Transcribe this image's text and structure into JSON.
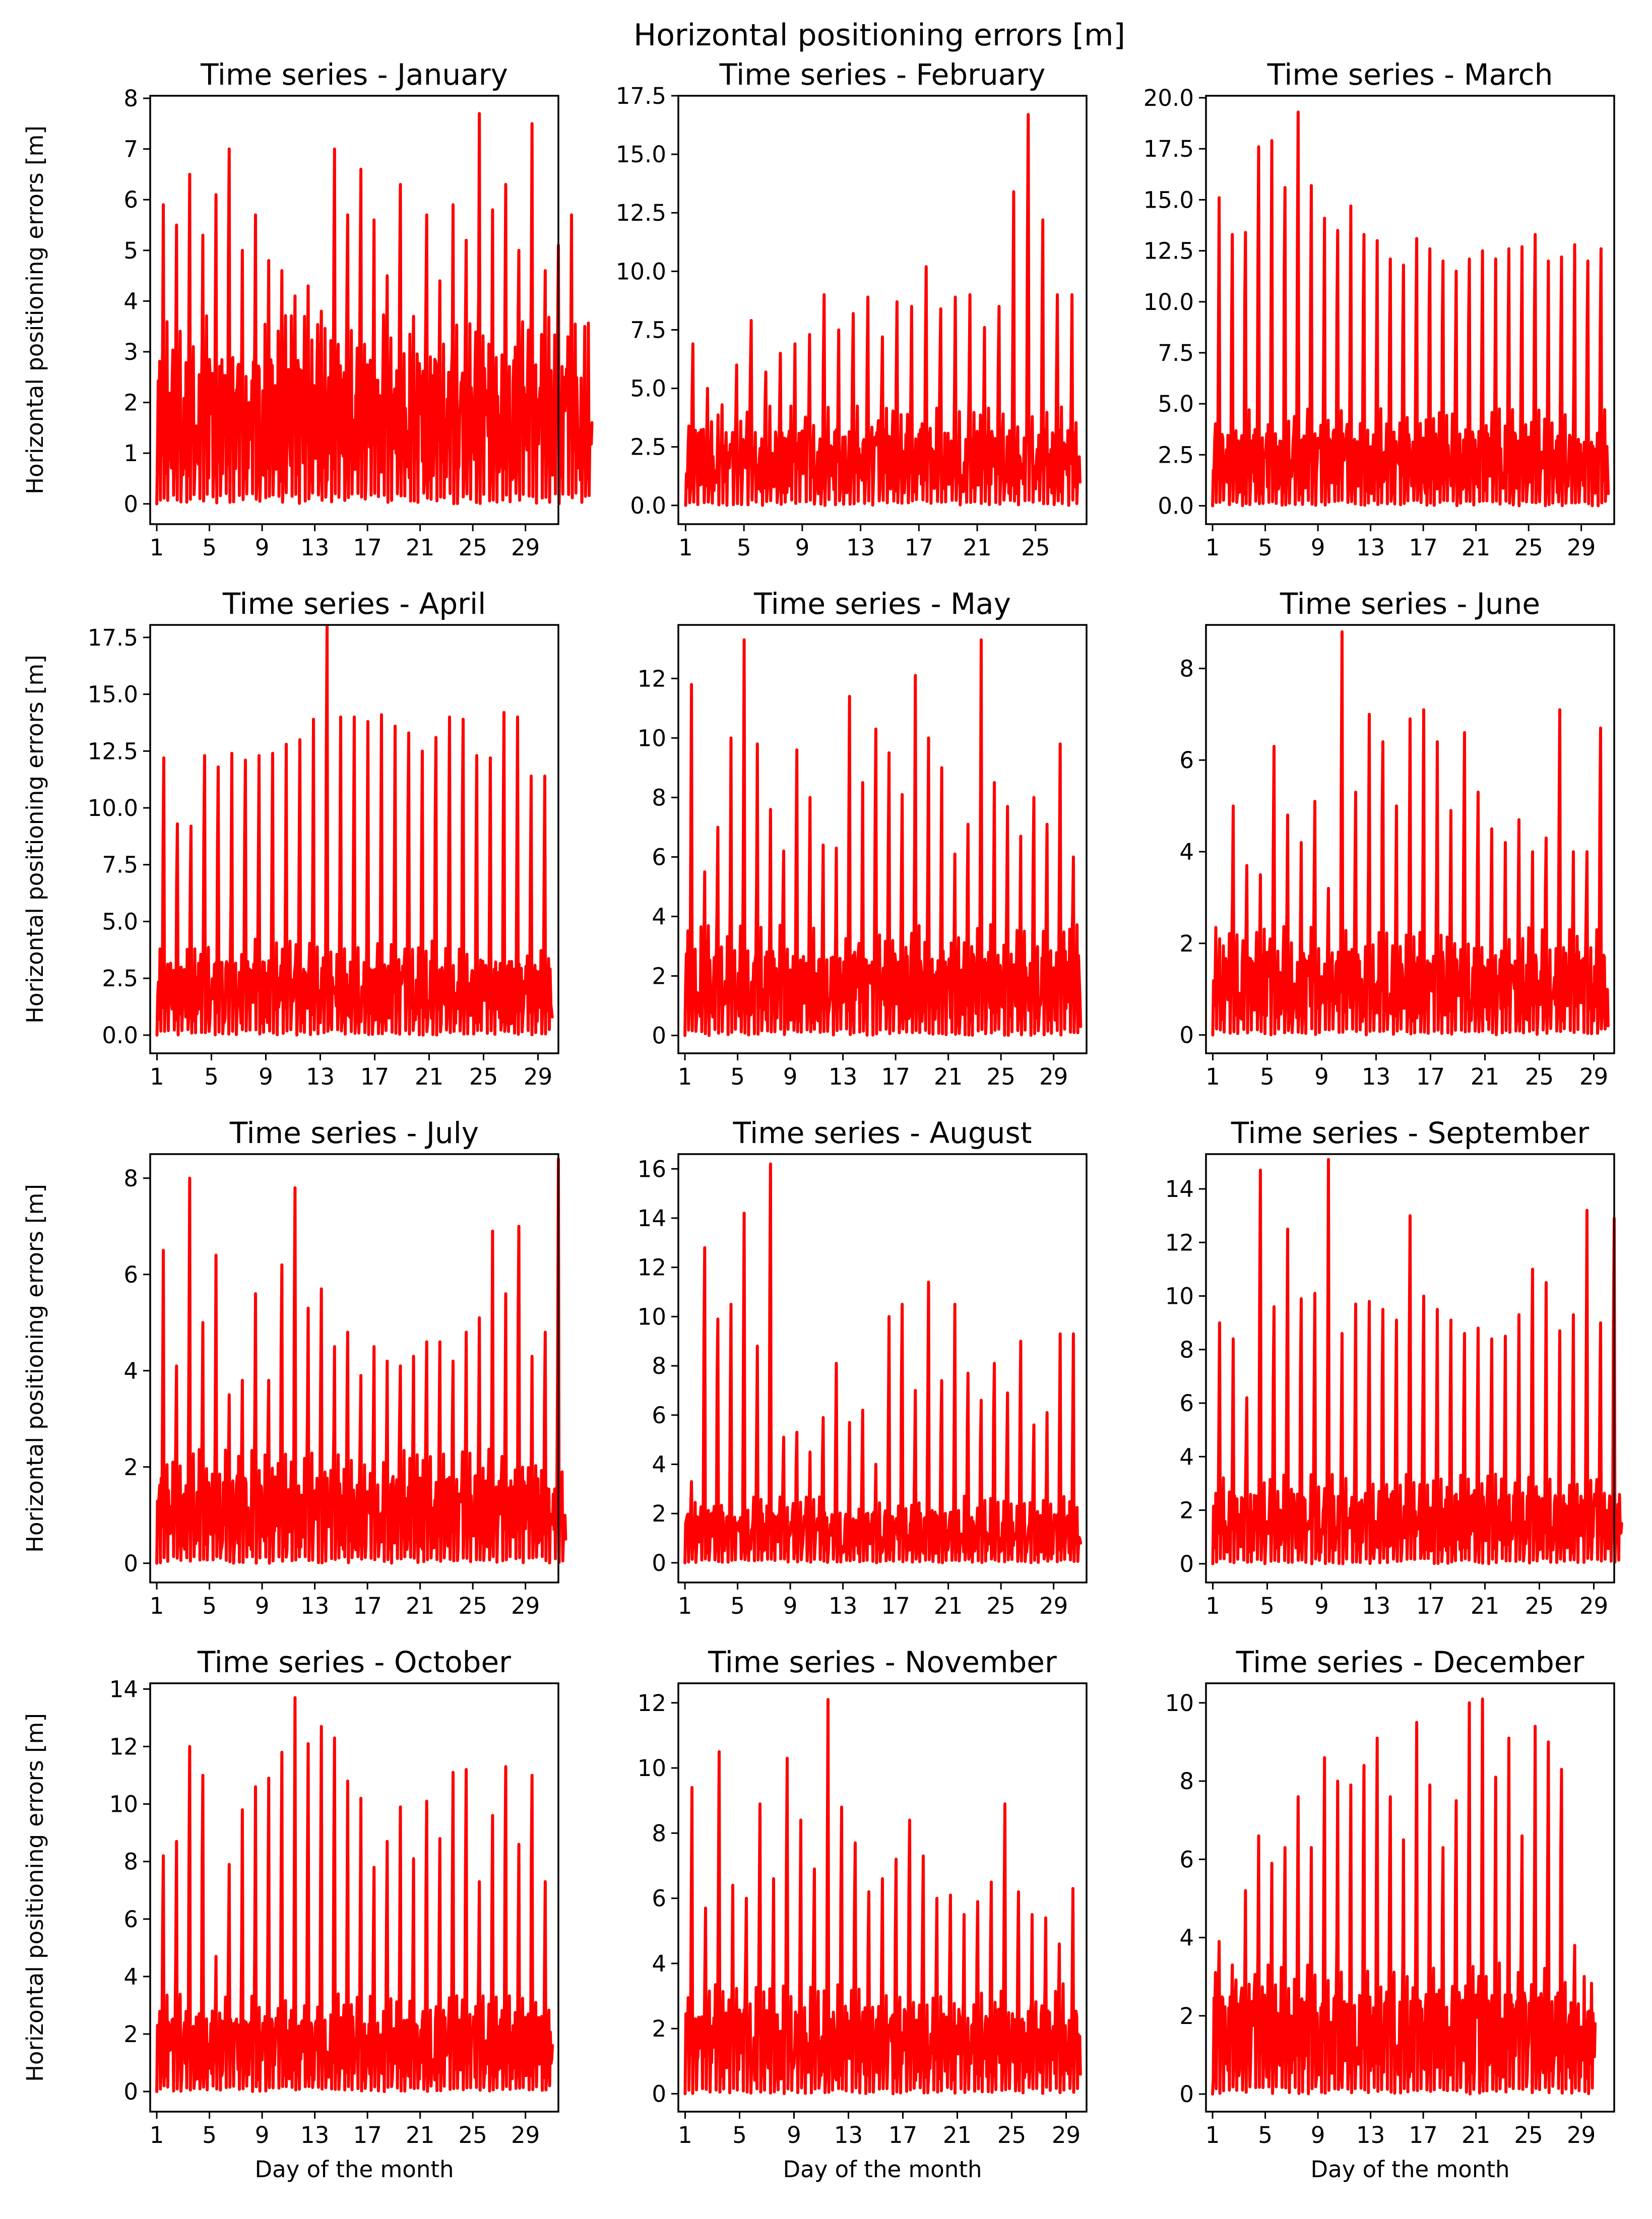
{
  "figure": {
    "suptitle": "Horizontal positioning errors [m]",
    "series_color": "#ff0000"
  },
  "chart_data": [
    {
      "type": "line",
      "title": "Time series - January",
      "xlabel": "",
      "ylabel": "Horizontal positioning errors [m]",
      "days": 31,
      "xticks": [
        1,
        5,
        9,
        13,
        17,
        21,
        25,
        29
      ],
      "ylim": [
        -0.4,
        8.05
      ],
      "yticks": [
        0,
        1,
        2,
        3,
        4,
        5,
        6,
        7,
        8
      ],
      "ytick_labels": [
        "0",
        "1",
        "2",
        "3",
        "4",
        "5",
        "6",
        "7",
        "8"
      ],
      "series": [
        {
          "name": "Horizontal positioning error",
          "peaks": [
            5.9,
            5.5,
            6.5,
            5.3,
            6.1,
            7.0,
            5.0,
            5.7,
            4.8,
            4.6,
            4.1,
            4.3,
            3.8,
            7.0,
            5.7,
            6.6,
            5.6,
            4.5,
            6.3,
            3.7,
            5.7,
            4.4,
            5.9,
            5.2,
            7.7,
            5.8,
            6.3,
            5.0,
            7.5,
            4.6,
            5.1,
            5.7,
            3.5
          ],
          "baseline": 2.2,
          "last_value": 1.6
        }
      ]
    },
    {
      "type": "line",
      "title": "Time series - February",
      "xlabel": "",
      "ylabel": "",
      "days": 28,
      "xticks": [
        1,
        5,
        9,
        13,
        17,
        21,
        25
      ],
      "ylim": [
        -0.8,
        17.5
      ],
      "yticks": [
        0,
        2.5,
        5,
        7.5,
        10,
        12.5,
        15,
        17.5
      ],
      "ytick_labels": [
        "0.0",
        "2.5",
        "5.0",
        "7.5",
        "10.0",
        "12.5",
        "15.0",
        "17.5"
      ],
      "series": [
        {
          "name": "Horizontal positioning error",
          "peaks": [
            6.9,
            5.0,
            4.3,
            6.0,
            7.9,
            5.7,
            6.5,
            6.9,
            7.3,
            9.0,
            7.5,
            8.2,
            8.9,
            7.2,
            8.7,
            8.5,
            10.2,
            8.4,
            8.9,
            9.0,
            7.6,
            8.5,
            13.4,
            16.7,
            12.2,
            9.0,
            9.0
          ],
          "baseline": 2.5,
          "last_value": 1.0
        }
      ]
    },
    {
      "type": "line",
      "title": "Time series - March",
      "xlabel": "",
      "ylabel": "",
      "days": 31,
      "xticks": [
        1,
        5,
        9,
        13,
        17,
        21,
        25,
        29
      ],
      "ylim": [
        -0.9,
        20.1
      ],
      "yticks": [
        0,
        2.5,
        5,
        7.5,
        10,
        12.5,
        15,
        17.5,
        20
      ],
      "ytick_labels": [
        "0.0",
        "2.5",
        "5.0",
        "7.5",
        "10.0",
        "12.5",
        "15.0",
        "17.5",
        "20.0"
      ],
      "series": [
        {
          "name": "Horizontal positioning error",
          "peaks": [
            15.1,
            13.3,
            13.4,
            17.6,
            17.9,
            15.6,
            19.3,
            15.7,
            14.1,
            13.5,
            14.7,
            13.3,
            13.0,
            12.1,
            11.8,
            13.1,
            12.6,
            12.0,
            11.5,
            12.1,
            12.5,
            12.1,
            12.6,
            12.7,
            13.3,
            12.0,
            12.2,
            12.8,
            12.0,
            12.6
          ],
          "baseline": 2.8,
          "last_value": 0.6
        }
      ]
    },
    {
      "type": "line",
      "title": "Time series - April",
      "xlabel": "",
      "ylabel": "Horizontal positioning errors [m]",
      "days": 30,
      "xticks": [
        1,
        5,
        9,
        13,
        17,
        21,
        25,
        29
      ],
      "ylim": [
        -0.8,
        18.05
      ],
      "yticks": [
        0,
        2.5,
        5,
        7.5,
        10,
        12.5,
        15,
        17.5
      ],
      "ytick_labels": [
        "0.0",
        "2.5",
        "5.0",
        "7.5",
        "10.0",
        "12.5",
        "15.0",
        "17.5"
      ],
      "series": [
        {
          "name": "Horizontal positioning error",
          "peaks": [
            12.2,
            9.3,
            9.2,
            12.3,
            11.8,
            12.4,
            12.1,
            12.3,
            12.4,
            12.8,
            13.0,
            13.9,
            18.0,
            14.0,
            14.0,
            13.8,
            14.1,
            13.6,
            13.3,
            12.5,
            13.1,
            14.0,
            13.9,
            12.3,
            12.2,
            14.2,
            14.0,
            11.4,
            11.4
          ],
          "baseline": 2.5,
          "last_value": 0.8
        }
      ]
    },
    {
      "type": "line",
      "title": "Time series - May",
      "xlabel": "",
      "ylabel": "",
      "days": 31,
      "xticks": [
        1,
        5,
        9,
        13,
        17,
        21,
        25,
        29
      ],
      "ylim": [
        -0.6,
        13.8
      ],
      "yticks": [
        0,
        2,
        4,
        6,
        8,
        10,
        12
      ],
      "ytick_labels": [
        "0",
        "2",
        "4",
        "6",
        "8",
        "10",
        "12"
      ],
      "series": [
        {
          "name": "Horizontal positioning error",
          "peaks": [
            11.8,
            5.5,
            7.0,
            10.0,
            13.3,
            9.8,
            7.6,
            6.2,
            9.6,
            8.0,
            6.4,
            6.3,
            11.4,
            8.5,
            10.3,
            9.5,
            8.1,
            12.1,
            10.0,
            9.0,
            6.1,
            7.1,
            13.3,
            8.5,
            7.7,
            6.7,
            8.0,
            7.1,
            9.8,
            6.0
          ],
          "baseline": 2.2,
          "last_value": 0.3
        }
      ]
    },
    {
      "type": "line",
      "title": "Time series - June",
      "xlabel": "",
      "ylabel": "",
      "days": 30,
      "xticks": [
        1,
        5,
        9,
        13,
        17,
        21,
        25,
        29
      ],
      "ylim": [
        -0.4,
        8.95
      ],
      "yticks": [
        0,
        2,
        4,
        6,
        8
      ],
      "ytick_labels": [
        "0",
        "2",
        "4",
        "6",
        "8"
      ],
      "series": [
        {
          "name": "Horizontal positioning error",
          "peaks": [
            2.1,
            5.0,
            3.7,
            3.5,
            6.3,
            4.8,
            4.2,
            5.1,
            3.2,
            8.8,
            5.3,
            7.0,
            6.4,
            5.0,
            6.9,
            7.1,
            6.4,
            4.9,
            6.6,
            5.3,
            4.5,
            4.2,
            4.7,
            4.0,
            4.3,
            7.1,
            4.0,
            4.0,
            6.7
          ],
          "baseline": 1.4,
          "last_value": 0.2
        }
      ]
    },
    {
      "type": "line",
      "title": "Time series - July",
      "xlabel": "",
      "ylabel": "Horizontal positioning errors [m]",
      "days": 31,
      "xticks": [
        1,
        5,
        9,
        13,
        17,
        21,
        25,
        29
      ],
      "ylim": [
        -0.4,
        8.5
      ],
      "yticks": [
        0,
        2,
        4,
        6,
        8
      ],
      "ytick_labels": [
        "0",
        "2",
        "4",
        "6",
        "8"
      ],
      "series": [
        {
          "name": "Horizontal positioning error",
          "peaks": [
            6.5,
            4.1,
            8.0,
            5.0,
            6.4,
            3.5,
            3.8,
            5.6,
            3.8,
            6.2,
            7.8,
            5.3,
            5.7,
            4.5,
            4.8,
            3.9,
            4.5,
            4.2,
            4.1,
            4.3,
            4.6,
            4.6,
            4.2,
            4.8,
            5.1,
            6.9,
            5.6,
            7.0,
            4.3,
            4.8,
            8.4
          ],
          "baseline": 1.4,
          "last_value": 0.5
        }
      ]
    },
    {
      "type": "line",
      "title": "Time series - August",
      "xlabel": "",
      "ylabel": "",
      "days": 31,
      "xticks": [
        1,
        5,
        9,
        13,
        17,
        21,
        25,
        29
      ],
      "ylim": [
        -0.8,
        16.6
      ],
      "yticks": [
        0,
        2,
        4,
        6,
        8,
        10,
        12,
        14,
        16
      ],
      "ytick_labels": [
        "0",
        "2",
        "4",
        "6",
        "8",
        "10",
        "12",
        "14",
        "16"
      ],
      "series": [
        {
          "name": "Horizontal positioning error",
          "peaks": [
            3.3,
            12.8,
            9.9,
            10.5,
            14.2,
            8.8,
            16.2,
            5.1,
            5.3,
            4.5,
            5.9,
            8.1,
            5.7,
            6.2,
            4.0,
            10.0,
            10.5,
            7.0,
            11.4,
            7.4,
            10.5,
            7.7,
            6.6,
            8.1,
            6.9,
            9.0,
            5.6,
            6.1,
            9.3,
            9.3
          ],
          "baseline": 1.6,
          "last_value": 0.8
        }
      ]
    },
    {
      "type": "line",
      "title": "Time series - September",
      "xlabel": "",
      "ylabel": "",
      "days": 30,
      "xticks": [
        1,
        5,
        9,
        13,
        17,
        21,
        25,
        29
      ],
      "ylim": [
        -0.7,
        15.3
      ],
      "yticks": [
        0,
        2,
        4,
        6,
        8,
        10,
        12,
        14
      ],
      "ytick_labels": [
        "0",
        "2",
        "4",
        "6",
        "8",
        "10",
        "12",
        "14"
      ],
      "series": [
        {
          "name": "Horizontal positioning error",
          "peaks": [
            9.0,
            8.4,
            6.2,
            14.7,
            9.6,
            12.5,
            9.9,
            10.1,
            15.1,
            8.6,
            9.7,
            9.8,
            9.5,
            9.1,
            13.0,
            10.0,
            9.5,
            9.1,
            8.6,
            8.8,
            8.4,
            8.5,
            9.3,
            11.0,
            10.5,
            8.7,
            9.3,
            13.2,
            9.0,
            12.9
          ],
          "baseline": 2.0,
          "last_value": 1.5
        }
      ]
    },
    {
      "type": "line",
      "title": "Time series - October",
      "xlabel": "Day of the month",
      "ylabel": "Horizontal positioning errors [m]",
      "days": 31,
      "xticks": [
        1,
        5,
        9,
        13,
        17,
        21,
        25,
        29
      ],
      "ylim": [
        -0.7,
        14.2
      ],
      "yticks": [
        0,
        2,
        4,
        6,
        8,
        10,
        12,
        14
      ],
      "ytick_labels": [
        "0",
        "2",
        "4",
        "6",
        "8",
        "10",
        "12",
        "14"
      ],
      "series": [
        {
          "name": "Horizontal positioning error",
          "peaks": [
            8.2,
            8.7,
            12.0,
            11.0,
            4.7,
            7.9,
            9.8,
            10.6,
            10.9,
            11.8,
            13.7,
            12.1,
            12.7,
            12.3,
            10.8,
            10.2,
            7.8,
            8.7,
            9.9,
            8.1,
            10.1,
            8.8,
            11.1,
            11.2,
            7.3,
            9.6,
            11.3,
            8.6,
            11.0,
            7.3
          ],
          "baseline": 2.0,
          "last_value": 1.6
        }
      ]
    },
    {
      "type": "line",
      "title": "Time series - November",
      "xlabel": "Day of the month",
      "ylabel": "",
      "days": 30,
      "xticks": [
        1,
        5,
        9,
        13,
        17,
        21,
        25,
        29
      ],
      "ylim": [
        -0.55,
        12.6
      ],
      "yticks": [
        0,
        2,
        4,
        6,
        8,
        10,
        12
      ],
      "ytick_labels": [
        "0",
        "2",
        "4",
        "6",
        "8",
        "10",
        "12"
      ],
      "series": [
        {
          "name": "Horizontal positioning error",
          "peaks": [
            9.4,
            5.7,
            10.5,
            6.4,
            6.0,
            8.9,
            6.6,
            10.3,
            8.4,
            6.9,
            12.1,
            8.8,
            7.7,
            6.2,
            6.6,
            7.2,
            8.4,
            7.3,
            6.0,
            6.1,
            5.5,
            5.9,
            6.5,
            8.9,
            6.2,
            5.5,
            5.4,
            4.6,
            6.3
          ],
          "baseline": 2.0,
          "last_value": 0.6
        }
      ]
    },
    {
      "type": "line",
      "title": "Time series - December",
      "xlabel": "Day of the month",
      "ylabel": "",
      "days": 31,
      "xticks": [
        1,
        5,
        9,
        13,
        17,
        21,
        25,
        29
      ],
      "ylim": [
        -0.45,
        10.5
      ],
      "yticks": [
        0,
        2,
        4,
        6,
        8,
        10
      ],
      "ytick_labels": [
        "0",
        "2",
        "4",
        "6",
        "8",
        "10"
      ],
      "series": [
        {
          "name": "Horizontal positioning error",
          "peaks": [
            3.9,
            3.3,
            5.2,
            6.6,
            5.9,
            6.3,
            7.6,
            6.3,
            8.6,
            8.0,
            7.9,
            8.4,
            9.1,
            7.6,
            6.5,
            9.5,
            7.9,
            6.3,
            7.5,
            10.0,
            10.1,
            8.1,
            9.1,
            6.6,
            9.4,
            9.0,
            8.3,
            3.8,
            2.1
          ],
          "baseline": 2.0,
          "last_value": 1.8
        }
      ]
    }
  ]
}
